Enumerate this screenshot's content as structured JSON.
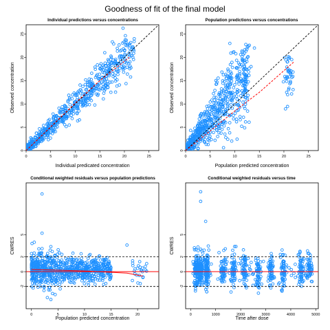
{
  "title": "Goodness of fit of the final model",
  "colors": {
    "points": "#1E90FF",
    "identity": "#000000",
    "smooth": "#FF0000",
    "zero": "#FF0000",
    "refline": "#000000"
  },
  "chart_data": [
    {
      "type": "scatter",
      "title": "Individual predictions versus concentrations",
      "xlabel": "Individual predicated concentration",
      "ylabel": "Observed concentration",
      "xlim": [
        0,
        27
      ],
      "ylim": [
        0,
        27
      ],
      "xticks": [
        "0",
        "5",
        "10",
        "15",
        "20",
        "25"
      ],
      "yticks": [
        "0",
        "5",
        "10",
        "15",
        "20",
        "25"
      ],
      "identity_line": true,
      "smooth": {
        "x": [
          0,
          5,
          10,
          15,
          21
        ],
        "y": [
          0,
          5.1,
          10.2,
          15.0,
          20.0
        ]
      },
      "cloud": {
        "x_range": [
          0,
          22
        ],
        "relationship": "y ≈ x",
        "spread_sd": 1.8
      },
      "outliers": [
        {
          "x": 16,
          "y": 21
        },
        {
          "x": 19,
          "y": 20
        },
        {
          "x": 21,
          "y": 22
        },
        {
          "x": 22,
          "y": 24
        },
        {
          "x": 15,
          "y": 13
        }
      ]
    },
    {
      "type": "scatter",
      "title": "Population predictions versus concentrations",
      "xlabel": "Population predicted concentration",
      "ylabel": "Observed concentration",
      "xlim": [
        0,
        27
      ],
      "ylim": [
        0,
        27
      ],
      "xticks": [
        "0",
        "5",
        "10",
        "15",
        "20",
        "25"
      ],
      "yticks": [
        "0",
        "5",
        "10",
        "15",
        "20",
        "25"
      ],
      "identity_line": true,
      "smooth": {
        "x": [
          0,
          5,
          10,
          15,
          22
        ],
        "y": [
          0,
          4.2,
          8.5,
          12.5,
          19.0
        ]
      },
      "cloud": {
        "x_range": [
          0,
          13
        ],
        "relationship": "y ≈ 1.3x with wide spread",
        "spread_sd": 3.5
      },
      "clusters": [
        {
          "x": 12,
          "y": 15,
          "sd_y": 2.5
        },
        {
          "x": 21,
          "y": 16,
          "sd_y": 2.5
        }
      ],
      "outliers": [
        {
          "x": 14,
          "y": 22
        },
        {
          "x": 9,
          "y": 23
        }
      ]
    },
    {
      "type": "scatter",
      "title": "Conditional weighted residuals versus population predictions",
      "xlabel": "Population predicted concentration",
      "ylabel": "CWRES",
      "xlim": [
        -1,
        24
      ],
      "ylim": [
        -5,
        12
      ],
      "xticks": [
        "0",
        "5",
        "10",
        "15",
        "20"
      ],
      "yticks": [
        "-2",
        "0",
        "2",
        "5"
      ],
      "ref_lines": [
        -2,
        2
      ],
      "zero_line": 0,
      "smooth": {
        "x": [
          0,
          10,
          18,
          21
        ],
        "y": [
          0.3,
          0.1,
          -0.2,
          -0.6
        ]
      },
      "cloud": {
        "x_range": [
          0,
          15
        ],
        "y_center": 0.3,
        "spread_sd": 0.9
      },
      "outliers": [
        {
          "x": 2,
          "y": 10.5
        },
        {
          "x": 2,
          "y": 5.2
        },
        {
          "x": 18,
          "y": 3.6
        },
        {
          "x": 3,
          "y": -3.5
        }
      ]
    },
    {
      "type": "scatter",
      "title": "Conditional weighted residuals versus time",
      "xlabel": "Time after dose",
      "ylabel": "CWRES",
      "xlim": [
        -200,
        5100
      ],
      "ylim": [
        -5,
        12
      ],
      "xticks": [
        "0",
        "1000",
        "2000",
        "3000",
        "4000",
        "5000"
      ],
      "yticks": [
        "-2",
        "0",
        "2",
        "5"
      ],
      "ref_lines": [
        -2,
        2
      ],
      "zero_line": 0,
      "bands_x": [
        240,
        400,
        650,
        1300,
        1700,
        2150,
        2700,
        3200,
        3700,
        4400,
        4750
      ],
      "outliers": [
        {
          "x": 400,
          "y": 10.8
        },
        {
          "x": 400,
          "y": 9.5
        },
        {
          "x": 600,
          "y": 6.8
        }
      ]
    }
  ]
}
